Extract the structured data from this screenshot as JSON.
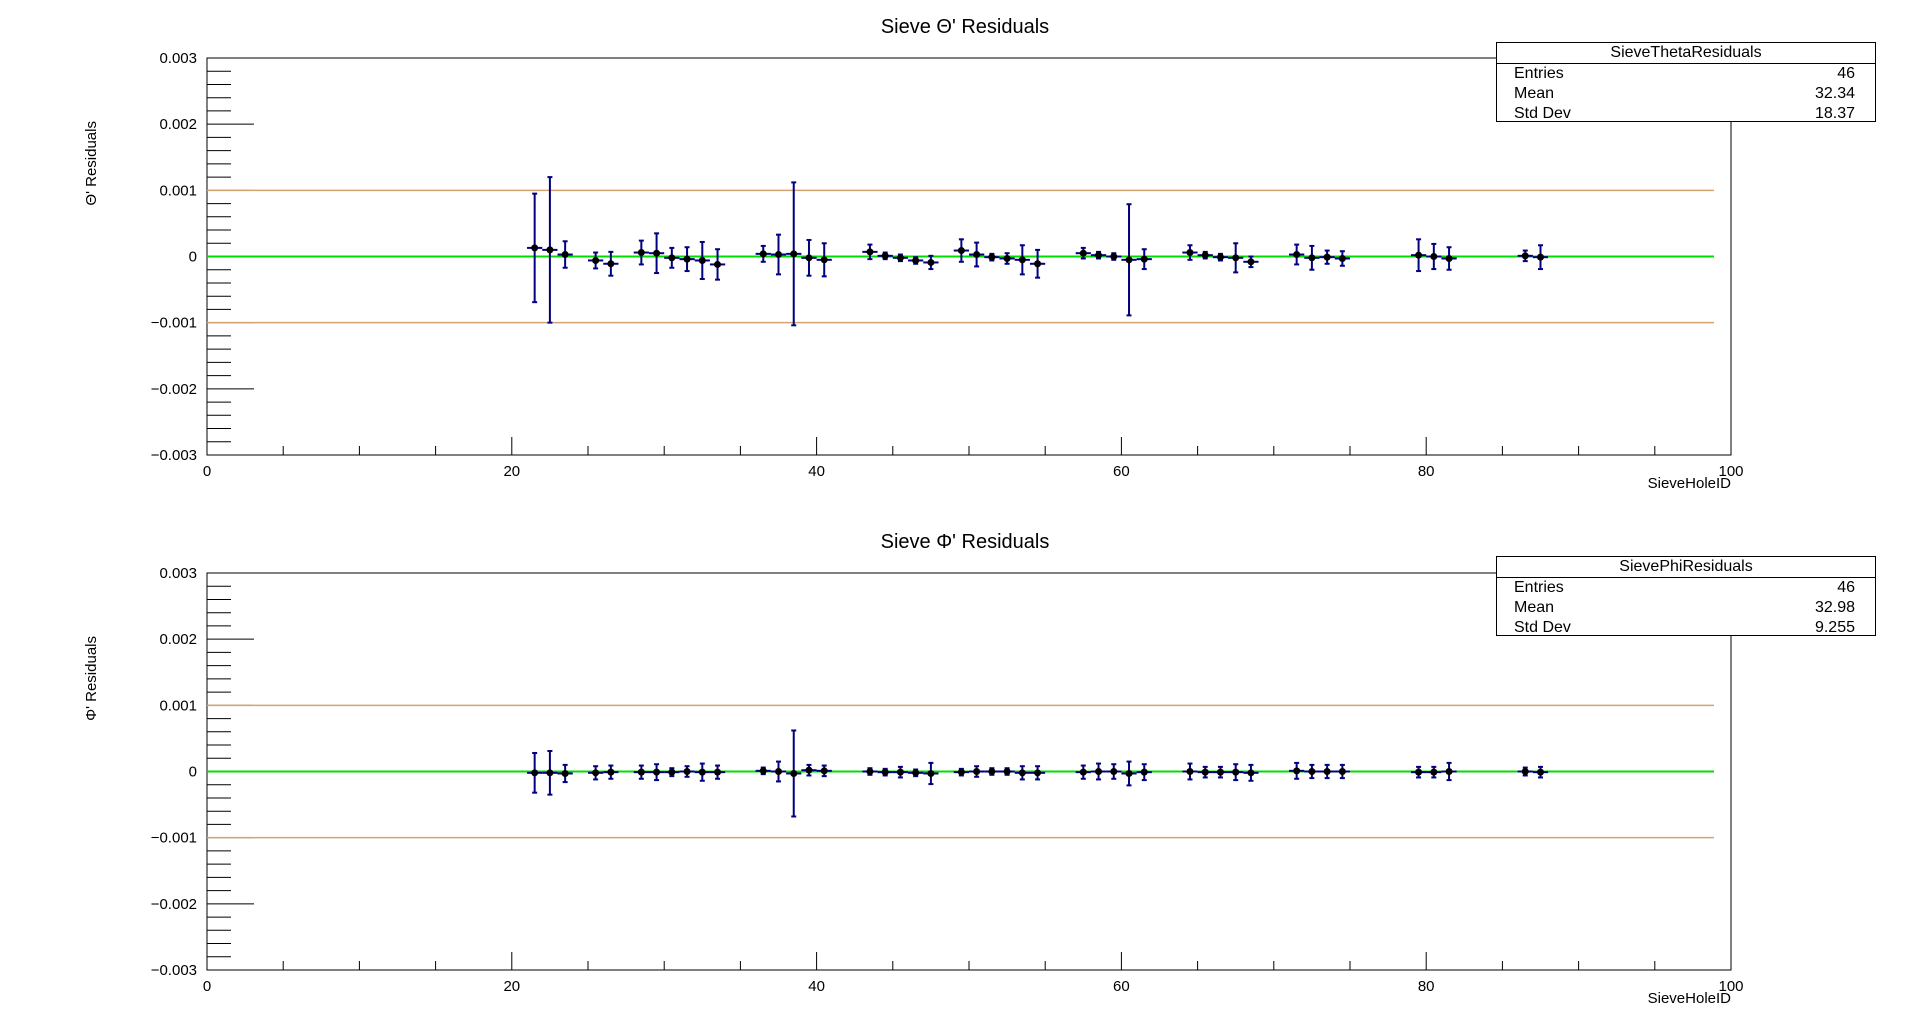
{
  "chart_data": [
    {
      "type": "scatter",
      "title": "Sieve Θ' Residuals",
      "xlabel": "SieveHoleID",
      "ylabel": "Θ' Residuals",
      "xlim": [
        0,
        100
      ],
      "ylim": [
        -0.003,
        0.003
      ],
      "x_ticks": [
        "0",
        "20",
        "40",
        "60",
        "80",
        "100"
      ],
      "y_ticks": [
        "−0.003",
        "−0.002",
        "−0.001",
        "0",
        "0.001",
        "0.002",
        "0.003"
      ],
      "grid": false,
      "reference_lines": [
        {
          "y": 0.001,
          "color": "#d4a373"
        },
        {
          "y": 0,
          "color": "#00dd00"
        },
        {
          "y": -0.001,
          "color": "#d4a373"
        }
      ],
      "stats": {
        "name": "SieveThetaResiduals",
        "rows": [
          {
            "label": "Entries",
            "value": "46"
          },
          {
            "label": "Mean",
            "value": "32.34"
          },
          {
            "label": "Std Dev",
            "value": "18.37"
          }
        ]
      },
      "points": [
        {
          "x": 21.5,
          "y": 0.00013,
          "err": 0.00082
        },
        {
          "x": 22.5,
          "y": 0.0001,
          "err": 0.0011
        },
        {
          "x": 23.5,
          "y": 3e-05,
          "err": 0.0002
        },
        {
          "x": 25.5,
          "y": -6e-05,
          "err": 0.00012
        },
        {
          "x": 26.5,
          "y": -0.00011,
          "err": 0.00018
        },
        {
          "x": 28.5,
          "y": 6e-05,
          "err": 0.00018
        },
        {
          "x": 29.5,
          "y": 5e-05,
          "err": 0.0003
        },
        {
          "x": 30.5,
          "y": -2e-05,
          "err": 0.00015
        },
        {
          "x": 31.5,
          "y": -4e-05,
          "err": 0.00018
        },
        {
          "x": 32.5,
          "y": -6e-05,
          "err": 0.00028
        },
        {
          "x": 33.5,
          "y": -0.00012,
          "err": 0.00023
        },
        {
          "x": 36.5,
          "y": 4e-05,
          "err": 0.00012
        },
        {
          "x": 37.5,
          "y": 3e-05,
          "err": 0.0003
        },
        {
          "x": 38.5,
          "y": 4e-05,
          "err": 0.00108
        },
        {
          "x": 39.5,
          "y": -2e-05,
          "err": 0.00027
        },
        {
          "x": 40.5,
          "y": -5e-05,
          "err": 0.00025
        },
        {
          "x": 43.5,
          "y": 7e-05,
          "err": 0.00011
        },
        {
          "x": 44.5,
          "y": 1e-05,
          "err": 5e-05
        },
        {
          "x": 45.5,
          "y": -2e-05,
          "err": 5e-05
        },
        {
          "x": 46.5,
          "y": -6e-05,
          "err": 5e-05
        },
        {
          "x": 47.5,
          "y": -9e-05,
          "err": 0.0001
        },
        {
          "x": 49.5,
          "y": 9e-05,
          "err": 0.00017
        },
        {
          "x": 50.5,
          "y": 3e-05,
          "err": 0.00018
        },
        {
          "x": 51.5,
          "y": -1e-05,
          "err": 5e-05
        },
        {
          "x": 52.5,
          "y": -3e-05,
          "err": 8e-05
        },
        {
          "x": 53.5,
          "y": -5e-05,
          "err": 0.00022
        },
        {
          "x": 54.5,
          "y": -0.00011,
          "err": 0.00021
        },
        {
          "x": 57.5,
          "y": 5e-05,
          "err": 8e-05
        },
        {
          "x": 58.5,
          "y": 2e-05,
          "err": 5e-05
        },
        {
          "x": 59.5,
          "y": 0,
          "err": 5e-05
        },
        {
          "x": 60.5,
          "y": -5e-05,
          "err": 0.00084
        },
        {
          "x": 61.5,
          "y": -4e-05,
          "err": 0.00015
        },
        {
          "x": 64.5,
          "y": 6e-05,
          "err": 0.00011
        },
        {
          "x": 65.5,
          "y": 2e-05,
          "err": 5e-05
        },
        {
          "x": 66.5,
          "y": -1e-05,
          "err": 5e-05
        },
        {
          "x": 67.5,
          "y": -2e-05,
          "err": 0.00022
        },
        {
          "x": 68.5,
          "y": -8e-05,
          "err": 8e-05
        },
        {
          "x": 71.5,
          "y": 3e-05,
          "err": 0.00015
        },
        {
          "x": 72.5,
          "y": -2e-05,
          "err": 0.00018
        },
        {
          "x": 73.5,
          "y": -1e-05,
          "err": 0.0001
        },
        {
          "x": 74.5,
          "y": -3e-05,
          "err": 0.00011
        },
        {
          "x": 79.5,
          "y": 2e-05,
          "err": 0.00024
        },
        {
          "x": 80.5,
          "y": 0,
          "err": 0.00019
        },
        {
          "x": 81.5,
          "y": -3e-05,
          "err": 0.00017
        },
        {
          "x": 86.5,
          "y": 1e-05,
          "err": 8e-05
        },
        {
          "x": 87.5,
          "y": -1e-05,
          "err": 0.00018
        }
      ]
    },
    {
      "type": "scatter",
      "title": "Sieve Φ' Residuals",
      "xlabel": "SieveHoleID",
      "ylabel": "Φ' Residuals",
      "xlim": [
        0,
        100
      ],
      "ylim": [
        -0.003,
        0.003
      ],
      "x_ticks": [
        "0",
        "20",
        "40",
        "60",
        "80",
        "100"
      ],
      "y_ticks": [
        "−0.003",
        "−0.002",
        "−0.001",
        "0",
        "0.001",
        "0.002",
        "0.003"
      ],
      "grid": false,
      "reference_lines": [
        {
          "y": 0.001,
          "color": "#d4a373"
        },
        {
          "y": 0,
          "color": "#00dd00"
        },
        {
          "y": -0.001,
          "color": "#d4a373"
        }
      ],
      "stats": {
        "name": "SievePhiResiduals",
        "rows": [
          {
            "label": "Entries",
            "value": "46"
          },
          {
            "label": "Mean",
            "value": "32.98"
          },
          {
            "label": "Std Dev",
            "value": "9.255"
          }
        ]
      },
      "points": [
        {
          "x": 21.5,
          "y": -2e-05,
          "err": 0.0003
        },
        {
          "x": 22.5,
          "y": -2e-05,
          "err": 0.00033
        },
        {
          "x": 23.5,
          "y": -3e-05,
          "err": 0.00013
        },
        {
          "x": 25.5,
          "y": -2e-05,
          "err": 0.0001
        },
        {
          "x": 26.5,
          "y": -1e-05,
          "err": 0.0001
        },
        {
          "x": 28.5,
          "y": -1e-05,
          "err": 0.0001
        },
        {
          "x": 29.5,
          "y": -1e-05,
          "err": 0.00012
        },
        {
          "x": 30.5,
          "y": -1e-05,
          "err": 6e-05
        },
        {
          "x": 31.5,
          "y": 0,
          "err": 8e-05
        },
        {
          "x": 32.5,
          "y": -1e-05,
          "err": 0.00013
        },
        {
          "x": 33.5,
          "y": -1e-05,
          "err": 0.0001
        },
        {
          "x": 36.5,
          "y": 1e-05,
          "err": 5e-05
        },
        {
          "x": 37.5,
          "y": 0,
          "err": 0.00015
        },
        {
          "x": 38.5,
          "y": -3e-05,
          "err": 0.00065
        },
        {
          "x": 39.5,
          "y": 2e-05,
          "err": 8e-05
        },
        {
          "x": 40.5,
          "y": 1e-05,
          "err": 8e-05
        },
        {
          "x": 43.5,
          "y": 0,
          "err": 5e-05
        },
        {
          "x": 44.5,
          "y": -1e-05,
          "err": 5e-05
        },
        {
          "x": 45.5,
          "y": -1e-05,
          "err": 8e-05
        },
        {
          "x": 46.5,
          "y": -2e-05,
          "err": 5e-05
        },
        {
          "x": 47.5,
          "y": -3e-05,
          "err": 0.00016
        },
        {
          "x": 49.5,
          "y": -1e-05,
          "err": 5e-05
        },
        {
          "x": 50.5,
          "y": 0,
          "err": 8e-05
        },
        {
          "x": 51.5,
          "y": 0,
          "err": 5e-05
        },
        {
          "x": 52.5,
          "y": 0,
          "err": 5e-05
        },
        {
          "x": 53.5,
          "y": -2e-05,
          "err": 0.0001
        },
        {
          "x": 54.5,
          "y": -2e-05,
          "err": 0.0001
        },
        {
          "x": 57.5,
          "y": -1e-05,
          "err": 0.0001
        },
        {
          "x": 58.5,
          "y": 0,
          "err": 0.00012
        },
        {
          "x": 59.5,
          "y": 0,
          "err": 0.00011
        },
        {
          "x": 60.5,
          "y": -3e-05,
          "err": 0.00018
        },
        {
          "x": 61.5,
          "y": -1e-05,
          "err": 0.00012
        },
        {
          "x": 64.5,
          "y": 0,
          "err": 0.00012
        },
        {
          "x": 65.5,
          "y": -1e-05,
          "err": 8e-05
        },
        {
          "x": 66.5,
          "y": -1e-05,
          "err": 8e-05
        },
        {
          "x": 67.5,
          "y": -1e-05,
          "err": 0.00012
        },
        {
          "x": 68.5,
          "y": -2e-05,
          "err": 0.00012
        },
        {
          "x": 71.5,
          "y": 1e-05,
          "err": 0.00012
        },
        {
          "x": 72.5,
          "y": 0,
          "err": 0.0001
        },
        {
          "x": 73.5,
          "y": 0,
          "err": 0.0001
        },
        {
          "x": 74.5,
          "y": 0,
          "err": 0.0001
        },
        {
          "x": 79.5,
          "y": -1e-05,
          "err": 8e-05
        },
        {
          "x": 80.5,
          "y": -1e-05,
          "err": 8e-05
        },
        {
          "x": 81.5,
          "y": 0,
          "err": 0.00013
        },
        {
          "x": 86.5,
          "y": 0,
          "err": 6e-05
        },
        {
          "x": 87.5,
          "y": -1e-05,
          "err": 8e-05
        }
      ]
    }
  ]
}
